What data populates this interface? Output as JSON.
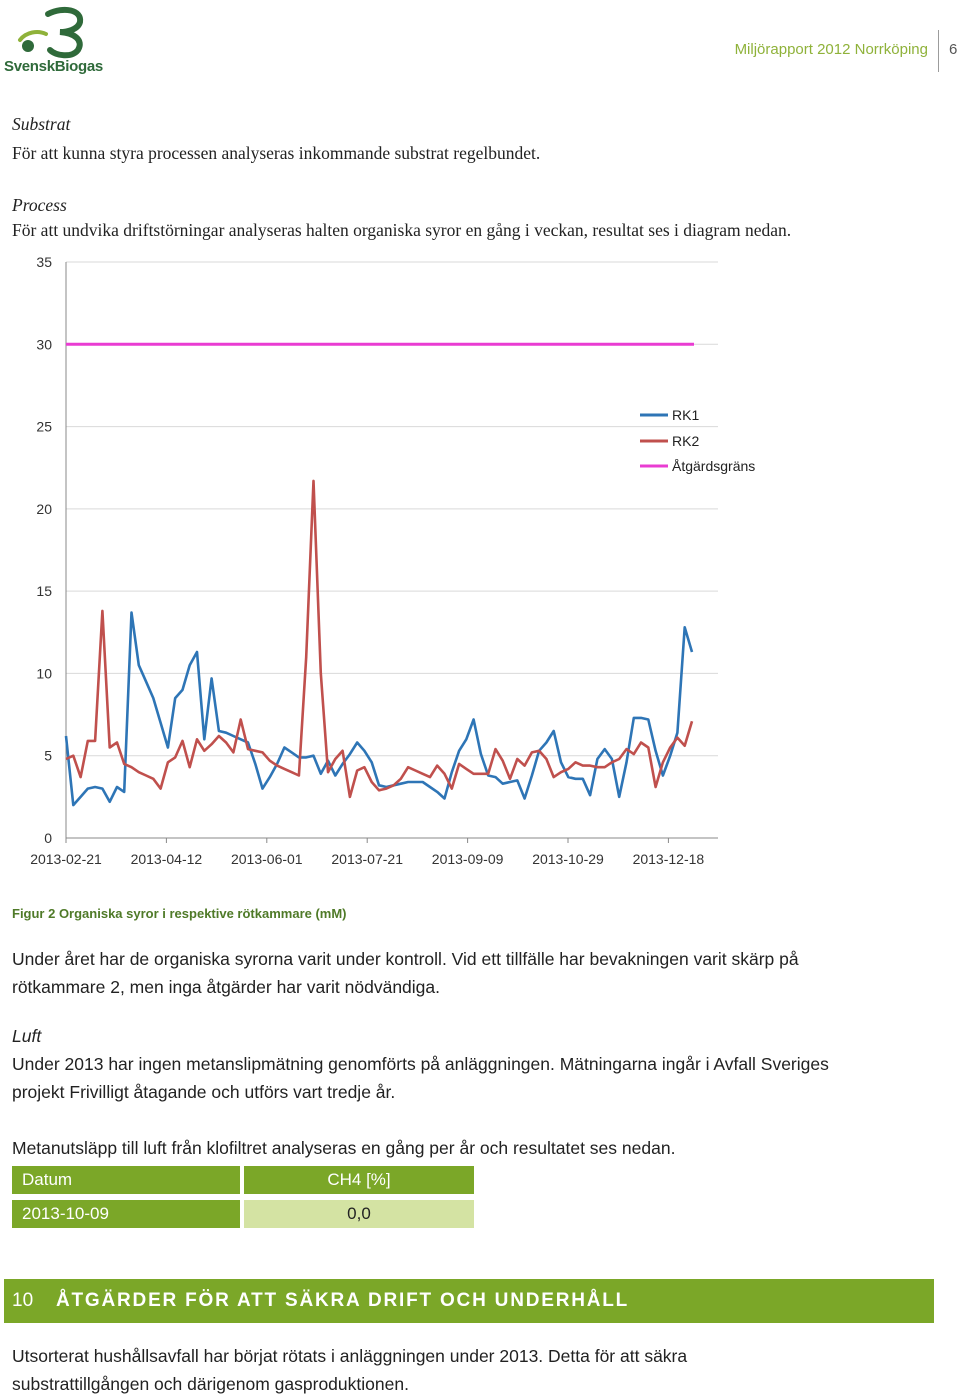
{
  "header": {
    "logo_text": "SvenskBiogas",
    "title": "Miljörapport 2012 Norrköping",
    "page_number": "6"
  },
  "substrat": {
    "heading": "Substrat",
    "text": "För att kunna styra processen analyseras inkommande substrat regelbundet."
  },
  "process": {
    "heading": "Process",
    "text": "För att undvika driftstörningar analyseras halten organiska syror en gång i veckan, resultat ses i diagram nedan."
  },
  "chart_data": {
    "type": "line",
    "x_tick_labels": [
      "2013-02-21",
      "2013-04-12",
      "2013-06-01",
      "2013-07-21",
      "2013-09-09",
      "2013-10-29",
      "2013-12-18"
    ],
    "y_tick_labels": [
      "0",
      "5",
      "10",
      "15",
      "20",
      "25",
      "30",
      "35"
    ],
    "ylim": [
      0,
      35
    ],
    "grid": true,
    "legend_position": "right",
    "series": [
      {
        "name": "RK1",
        "color": "#2e75b6",
        "values": [
          6.2,
          2.0,
          2.5,
          3.0,
          3.1,
          3.0,
          2.2,
          3.1,
          2.8,
          13.7,
          10.5,
          9.5,
          8.5,
          7.0,
          5.5,
          8.5,
          9.0,
          10.5,
          11.3,
          6.0,
          9.7,
          6.5,
          6.4,
          6.2,
          6.0,
          5.8,
          4.5,
          3.0,
          3.7,
          4.5,
          5.5,
          5.2,
          4.9,
          4.9,
          5.0,
          3.9,
          4.7,
          3.8,
          4.5,
          5.1,
          5.8,
          5.3,
          4.6,
          3.2,
          3.1,
          3.2,
          3.3,
          3.4,
          3.4,
          3.4,
          3.1,
          2.8,
          2.4,
          4.0,
          5.3,
          6.0,
          7.2,
          5.1,
          3.8,
          3.7,
          3.3,
          3.4,
          3.5,
          2.4,
          3.8,
          5.3,
          5.8,
          6.5,
          4.6,
          3.7,
          3.6,
          3.6,
          2.6,
          4.8,
          5.4,
          4.8,
          2.5,
          4.6,
          7.3,
          7.3,
          7.2,
          5.3,
          3.8,
          5.0,
          6.4,
          12.8,
          11.3
        ]
      },
      {
        "name": "RK2",
        "color": "#c0504d",
        "values": [
          4.8,
          5.0,
          3.7,
          5.9,
          5.9,
          13.8,
          5.5,
          5.8,
          4.5,
          4.3,
          4.0,
          3.8,
          3.6,
          3.0,
          4.6,
          4.9,
          5.9,
          4.3,
          6.0,
          5.3,
          5.7,
          6.2,
          5.8,
          5.2,
          7.2,
          5.4,
          5.3,
          5.2,
          4.7,
          4.4,
          4.2,
          4.0,
          3.8,
          11.0,
          21.7,
          10.0,
          4.0,
          4.8,
          5.3,
          2.5,
          4.1,
          4.3,
          3.4,
          2.9,
          3.0,
          3.2,
          3.6,
          4.3,
          4.1,
          3.9,
          3.7,
          4.4,
          3.9,
          3.0,
          4.5,
          4.2,
          3.9,
          3.9,
          3.9,
          5.4,
          4.7,
          3.6,
          4.8,
          4.4,
          5.2,
          5.3,
          4.8,
          3.7,
          4.0,
          4.2,
          4.6,
          4.4,
          4.4,
          4.3,
          4.3,
          4.6,
          4.8,
          5.4,
          5.1,
          5.8,
          5.5,
          3.1,
          4.6,
          5.5,
          6.1,
          5.6,
          7.1
        ]
      },
      {
        "name": "Åtgärdsgräns",
        "color": "#e93cd2",
        "values": [
          30,
          30
        ]
      }
    ]
  },
  "figure_caption": "Figur 2 Organiska syror i respektive rötkammare (mM)",
  "paragraph1_line1": "Under året har de organiska syrorna varit under kontroll. Vid ett tillfälle har bevakningen varit skärp på",
  "paragraph1_line2": "rötkammare 2, men inga åtgärder har varit nödvändiga.",
  "luft": {
    "heading": "Luft",
    "line1": "Under 2013 har ingen metanslipmätning genomförts på anläggningen. Mätningarna ingår i Avfall Sveriges",
    "line2": "projekt Frivilligt åtagande och utförs vart tredje år."
  },
  "metan_text": "Metanutsläpp till luft från klofiltret analyseras en gång per år och resultatet ses nedan.",
  "table": {
    "header": [
      "Datum",
      "CH4 [%]"
    ],
    "rows": [
      [
        "2013-10-09",
        "0,0"
      ]
    ]
  },
  "section": {
    "number": "10",
    "title": "ÅTGÄRDER FÖR ATT SÄKRA DRIFT OCH UNDERHÅLL"
  },
  "closing_line1": "Utsorterat hushållsavfall har börjat rötats i anläggningen under 2013. Detta för att säkra",
  "closing_line2": "substrattillgången och därigenom gasproduktionen.",
  "colors": {
    "accent_green": "#7ba728",
    "light_green": "#d4e3a3",
    "header_green": "#8fb23a"
  }
}
